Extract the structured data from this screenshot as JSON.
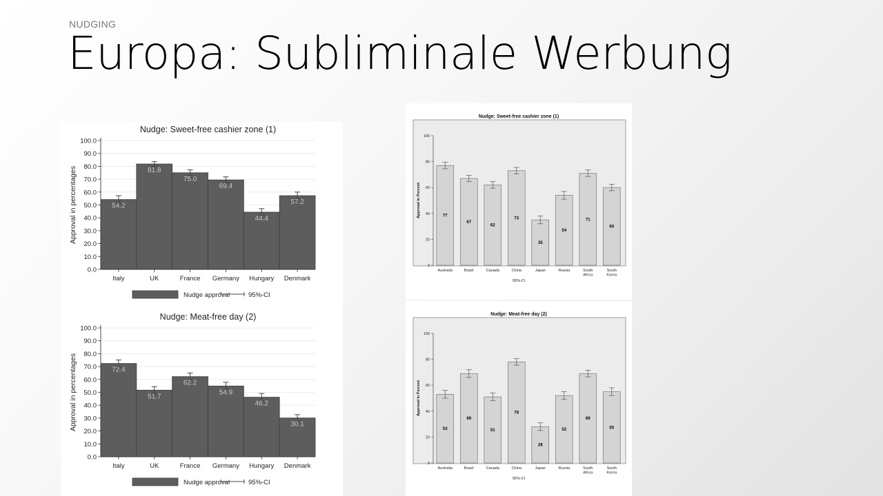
{
  "slide": {
    "section_label": "NUDGING",
    "title": "Europa: Subliminale Werbung"
  },
  "chart_data": [
    {
      "type": "bar",
      "title": "Nudge: Sweet-free cashier zone (1)",
      "ylabel": "Approval in percentages",
      "categories": [
        "Italy",
        "UK",
        "France",
        "Germany",
        "Hungary",
        "Denmark"
      ],
      "series": [
        {
          "name": "Nudge approval",
          "values": [
            54.2,
            81.8,
            75.0,
            69.4,
            44.4,
            57.2
          ]
        }
      ],
      "data_labels": [
        "54.2",
        "81.8",
        "75.0",
        "69.4",
        "44.4",
        "57.2"
      ],
      "ci": [
        [
          51.2,
          57.2
        ],
        [
          80.0,
          83.6
        ],
        [
          72.8,
          77.2
        ],
        [
          67.0,
          71.8
        ],
        [
          41.7,
          47.1
        ],
        [
          54.4,
          60.0
        ]
      ],
      "ylim": [
        0,
        100
      ],
      "yticks": [
        "0.0",
        "10.0",
        "20.0",
        "30.0",
        "40.0",
        "50.0",
        "60.0",
        "70.0",
        "80.0",
        "90.0",
        "100.0"
      ],
      "legend": [
        "Nudge approval",
        "95%-CI"
      ],
      "legend_position": "bottom",
      "grid": true,
      "bar_color": "#5d5d5d",
      "label_color": "#c8c8c8"
    },
    {
      "type": "bar",
      "title": "Nudge: Meat-free day (2)",
      "ylabel": "Approval in percentages",
      "categories": [
        "Italy",
        "UK",
        "France",
        "Germany",
        "Hungary",
        "Denmark"
      ],
      "series": [
        {
          "name": "Nudge approval",
          "values": [
            72.4,
            51.7,
            62.2,
            54.9,
            46.2,
            30.1
          ]
        }
      ],
      "data_labels": [
        "72.4",
        "51.7",
        "62.2",
        "54.9",
        "46.2",
        "30.1"
      ],
      "ci": [
        [
          69.7,
          75.1
        ],
        [
          49.0,
          54.4
        ],
        [
          59.4,
          65.0
        ],
        [
          52.0,
          57.8
        ],
        [
          43.3,
          49.1
        ],
        [
          27.5,
          32.7
        ]
      ],
      "ylim": [
        0,
        100
      ],
      "yticks": [
        "0.0",
        "10.0",
        "20.0",
        "30.0",
        "40.0",
        "50.0",
        "60.0",
        "70.0",
        "80.0",
        "90.0",
        "100.0"
      ],
      "legend": [
        "Nudge approval",
        "95%-CI"
      ],
      "legend_position": "bottom",
      "grid": true,
      "bar_color": "#5d5d5d",
      "label_color": "#c8c8c8"
    },
    {
      "type": "bar",
      "title": "Nudge: Sweet-free cashier zone (1)",
      "ylabel": "Approval in Percent",
      "xlabel": "95%-CI",
      "categories": [
        "Australia",
        "Brazil",
        "Canada",
        "China",
        "Japan",
        "Russia",
        "South Africa",
        "South Korea"
      ],
      "series": [
        {
          "values": [
            77,
            67,
            62,
            73,
            35,
            54,
            71,
            60
          ]
        }
      ],
      "data_labels": [
        "77",
        "67",
        "62",
        "73",
        "35",
        "54",
        "71",
        "60"
      ],
      "ci": [
        [
          74.5,
          79.5
        ],
        [
          64.5,
          69.5
        ],
        [
          59.5,
          64.5
        ],
        [
          70.5,
          75.5
        ],
        [
          32.0,
          38.0
        ],
        [
          51.0,
          57.0
        ],
        [
          68.5,
          73.5
        ],
        [
          57.5,
          62.5
        ]
      ],
      "ylim": [
        0,
        100
      ],
      "yticks": [
        "0",
        "20",
        "40",
        "60",
        "80",
        "100"
      ],
      "grid": false,
      "bar_color": "#d4d4d4",
      "plot_bg": "#ececec",
      "label_color": "#000000"
    },
    {
      "type": "bar",
      "title": "Nudge: Meat-free day (2)",
      "ylabel": "Approval in Percent",
      "xlabel": "95%-CI",
      "categories": [
        "Australia",
        "Brazil",
        "Canada",
        "China",
        "Japan",
        "Russia",
        "South Africa",
        "South Korea"
      ],
      "series": [
        {
          "values": [
            53,
            69,
            51,
            78,
            28,
            52,
            69,
            55
          ]
        }
      ],
      "data_labels": [
        "53",
        "69",
        "51",
        "78",
        "28",
        "52",
        "69",
        "55"
      ],
      "ci": [
        [
          50.0,
          56.0
        ],
        [
          66.0,
          72.0
        ],
        [
          48.0,
          54.0
        ],
        [
          75.5,
          80.5
        ],
        [
          25.0,
          31.0
        ],
        [
          49.0,
          55.0
        ],
        [
          66.5,
          71.5
        ],
        [
          52.0,
          58.0
        ]
      ],
      "ylim": [
        0,
        100
      ],
      "yticks": [
        "0",
        "20",
        "40",
        "60",
        "80",
        "100"
      ],
      "grid": false,
      "bar_color": "#d4d4d4",
      "plot_bg": "#ececec",
      "label_color": "#000000"
    }
  ]
}
